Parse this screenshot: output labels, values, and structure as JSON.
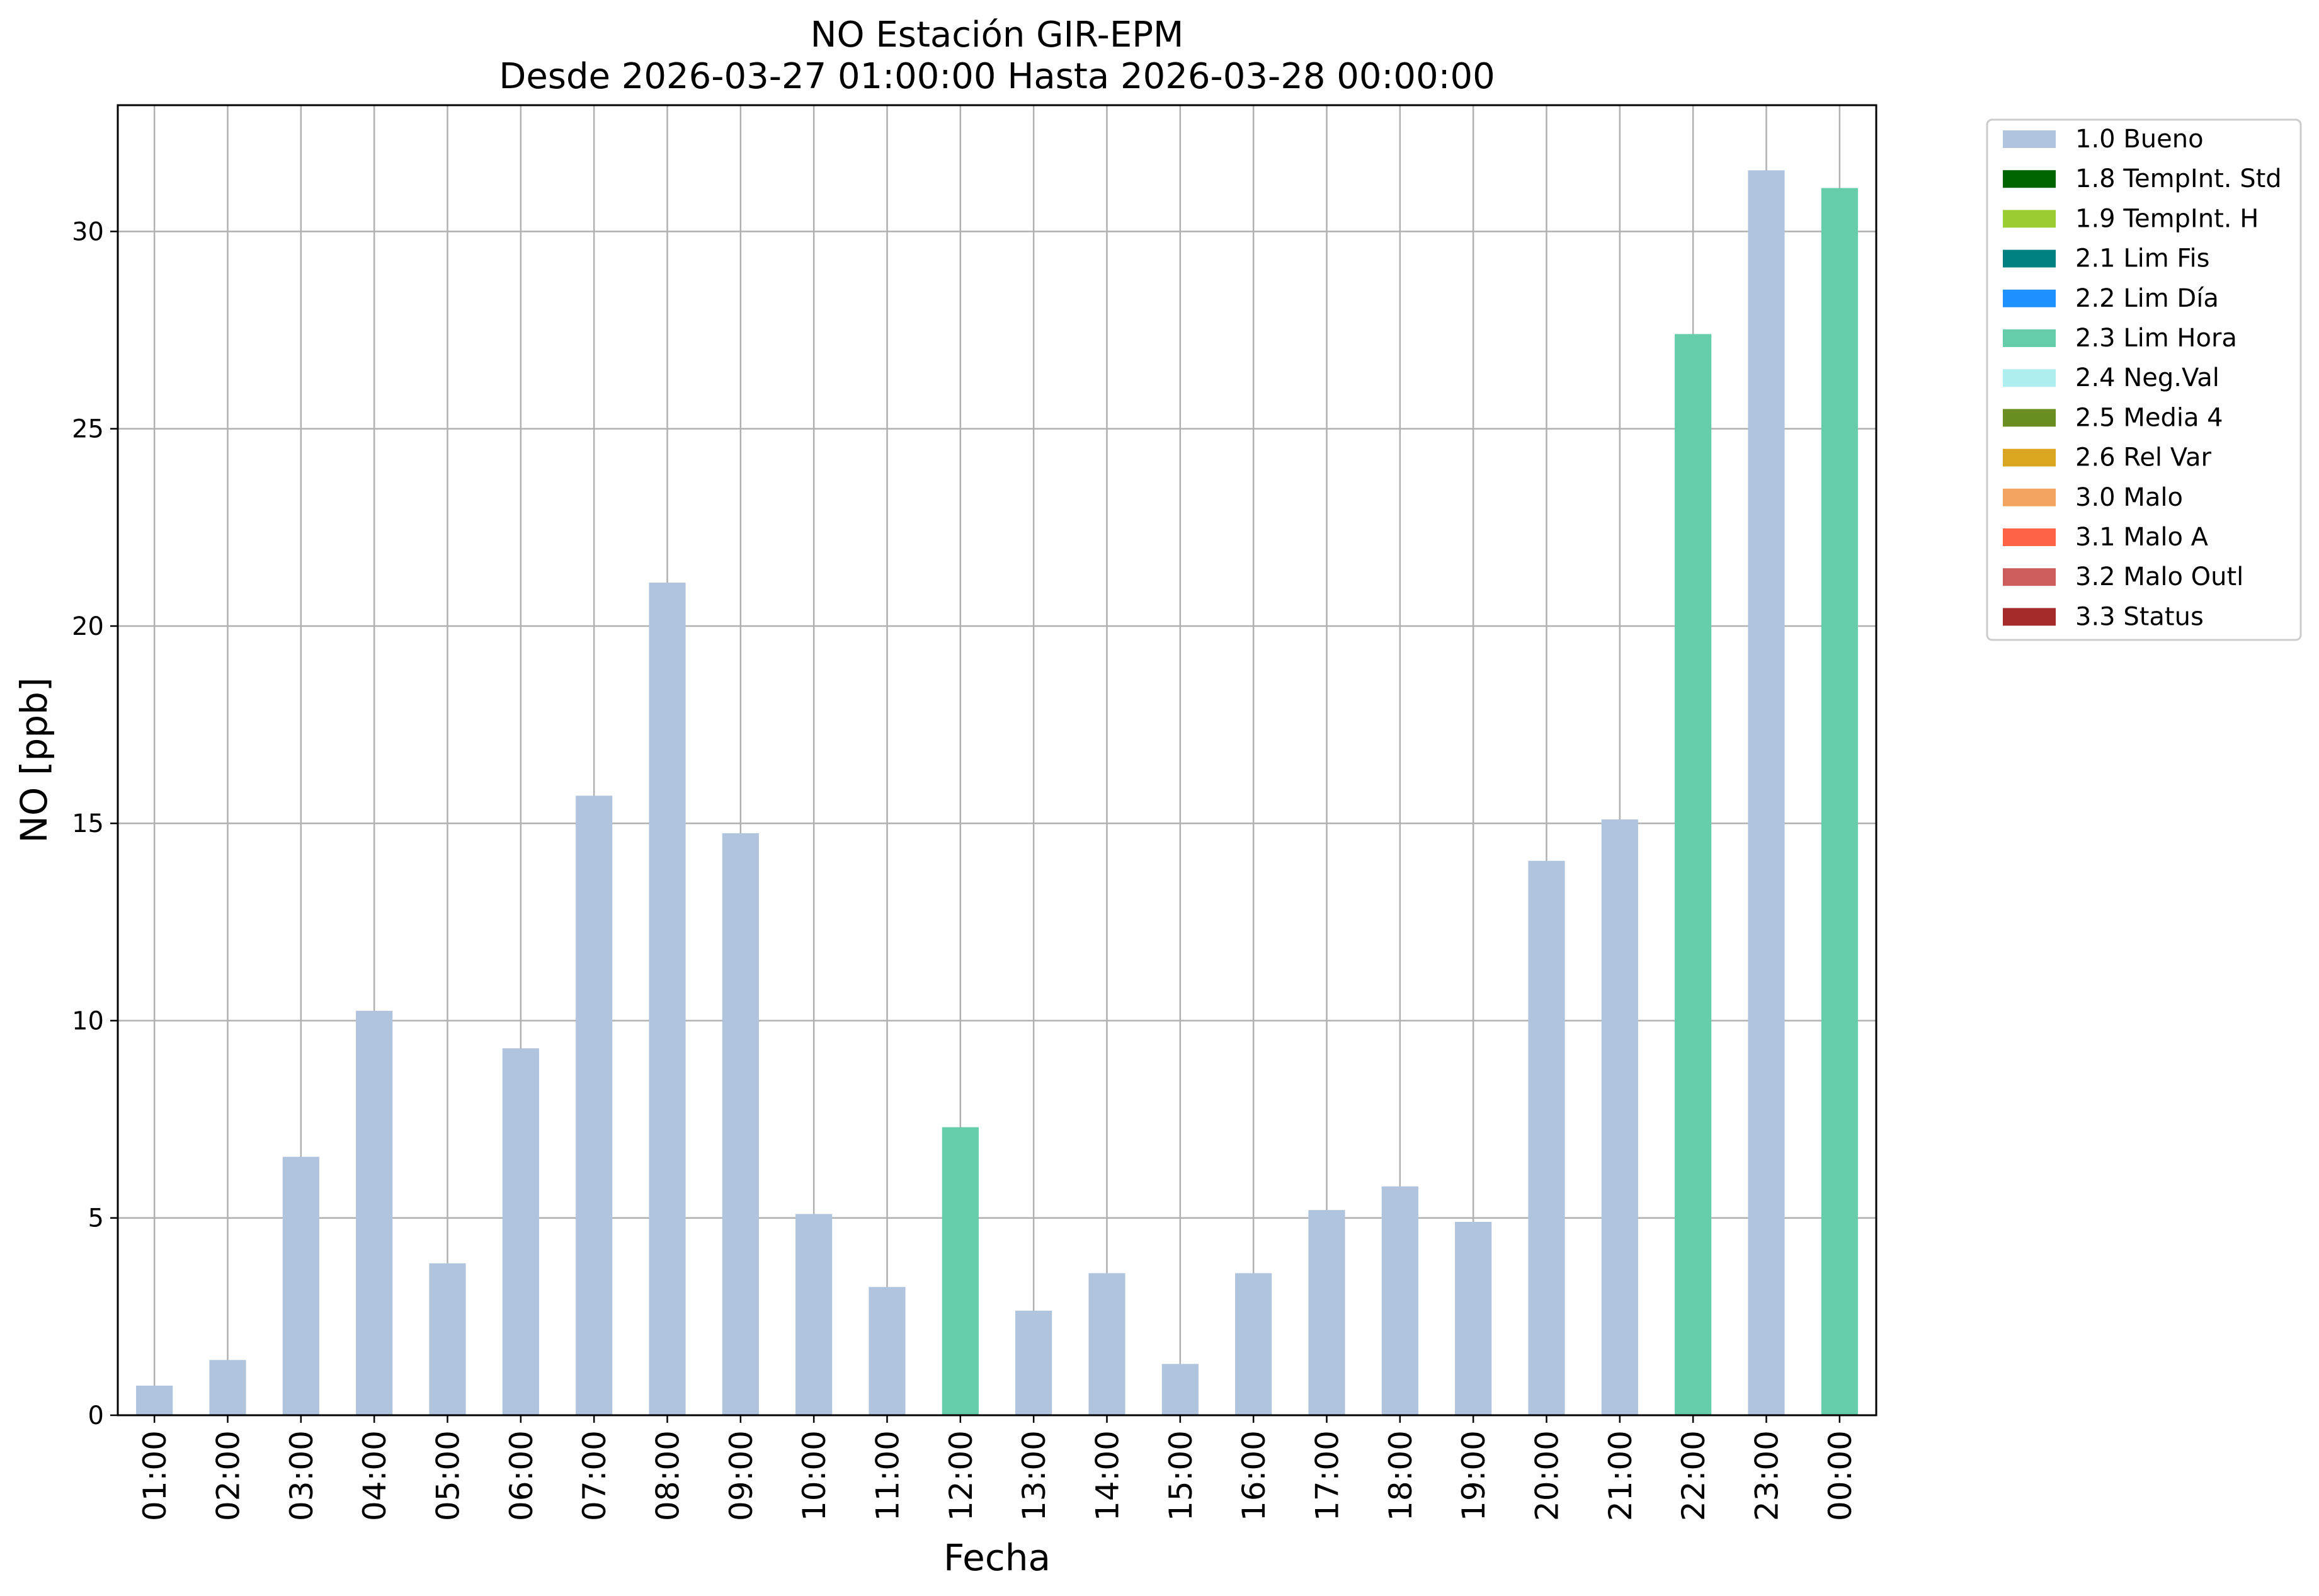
{
  "chart_data": {
    "type": "bar",
    "title": "NO Estación GIR-EPM",
    "subtitle": "Desde 2026-03-27 01:00:00 Hasta 2026-03-28 00:00:00",
    "xlabel": "Fecha",
    "ylabel": "NO [ppb]",
    "ylim": [
      0,
      33.2
    ],
    "yticks": [
      0,
      5,
      10,
      15,
      20,
      25,
      30
    ],
    "grid": true,
    "legend_position": "outside-top-right",
    "categories": [
      "01:00",
      "02:00",
      "03:00",
      "04:00",
      "05:00",
      "06:00",
      "07:00",
      "08:00",
      "09:00",
      "10:00",
      "11:00",
      "12:00",
      "13:00",
      "14:00",
      "15:00",
      "16:00",
      "17:00",
      "18:00",
      "19:00",
      "20:00",
      "21:00",
      "22:00",
      "23:00",
      "00:00"
    ],
    "values": [
      0.75,
      1.4,
      6.55,
      10.25,
      3.85,
      9.3,
      15.7,
      21.1,
      14.75,
      5.1,
      3.25,
      7.3,
      2.65,
      3.6,
      1.3,
      3.6,
      5.2,
      5.8,
      4.9,
      14.05,
      15.1,
      27.4,
      31.55,
      31.1
    ],
    "flags": [
      "1.0 Bueno",
      "1.0 Bueno",
      "1.0 Bueno",
      "1.0 Bueno",
      "1.0 Bueno",
      "1.0 Bueno",
      "1.0 Bueno",
      "1.0 Bueno",
      "1.0 Bueno",
      "1.0 Bueno",
      "1.0 Bueno",
      "2.3 Lim Hora",
      "1.0 Bueno",
      "1.0 Bueno",
      "1.0 Bueno",
      "1.0 Bueno",
      "1.0 Bueno",
      "1.0 Bueno",
      "1.0 Bueno",
      "1.0 Bueno",
      "1.0 Bueno",
      "2.3 Lim Hora",
      "1.0 Bueno",
      "2.3 Lim Hora"
    ],
    "legend": [
      {
        "label": "1.0 Bueno",
        "color": "#b0c4de"
      },
      {
        "label": "1.8 TempInt. Std",
        "color": "#006400"
      },
      {
        "label": "1.9 TempInt. H",
        "color": "#9acd32"
      },
      {
        "label": "2.1 Lim Fis",
        "color": "#008080"
      },
      {
        "label": "2.2 Lim Día",
        "color": "#1e90ff"
      },
      {
        "label": "2.3 Lim Hora",
        "color": "#66cdaa"
      },
      {
        "label": "2.4 Neg.Val",
        "color": "#afeeee"
      },
      {
        "label": "2.5 Media 4",
        "color": "#6b8e23"
      },
      {
        "label": "2.6 Rel Var",
        "color": "#daa520"
      },
      {
        "label": "3.0 Malo",
        "color": "#f4a460"
      },
      {
        "label": "3.1 Malo A",
        "color": "#ff6347"
      },
      {
        "label": "3.2 Malo Outl",
        "color": "#cd5c5c"
      },
      {
        "label": "3.3 Status",
        "color": "#a52a2a"
      }
    ]
  }
}
